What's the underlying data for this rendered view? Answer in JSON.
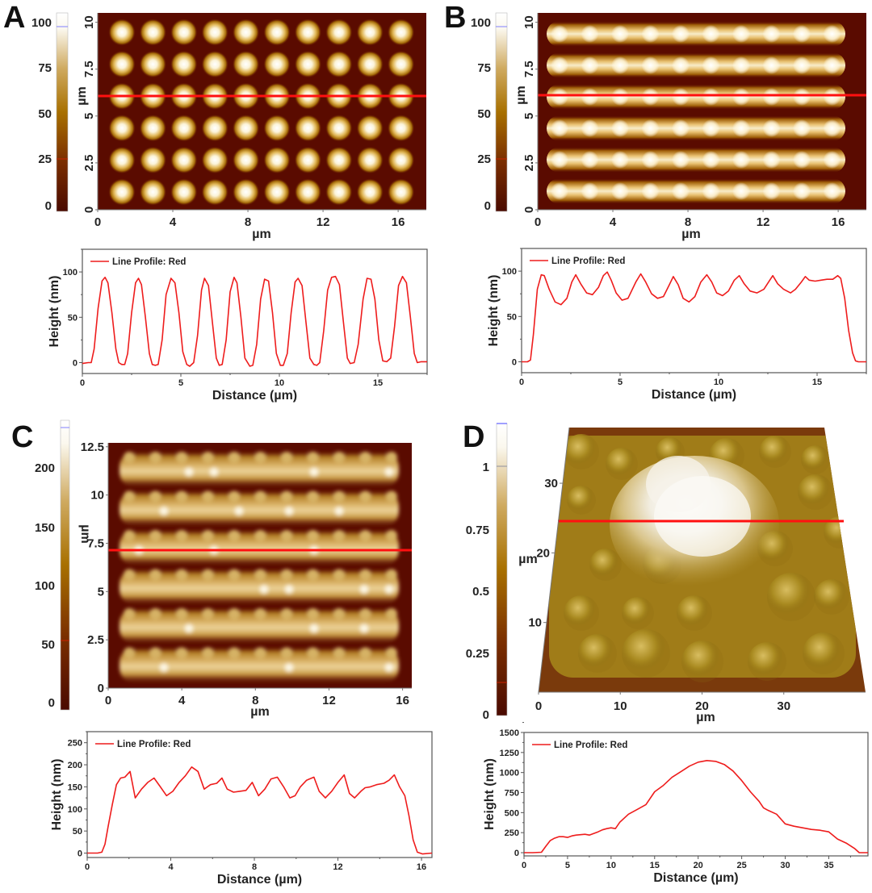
{
  "panels": [
    {
      "label": "A",
      "afm_image": {
        "type": "heatmap",
        "pattern": "isolated dots, 10 columns x 6 rows",
        "x_ticks": [
          "0",
          "4",
          "8",
          "12",
          "16"
        ],
        "y_ticks": [
          "0",
          "2.5",
          "5",
          "7.5",
          "10"
        ],
        "xlabel": "µm",
        "ylabel": "µm",
        "xlim": [
          0,
          17.5
        ],
        "ylim": [
          0,
          10.5
        ],
        "profile_line_y": 6,
        "colorbar": {
          "ticks": [
            "0",
            "25",
            "50",
            "75",
            "100"
          ],
          "range": [
            -2,
            103
          ]
        }
      }
    },
    {
      "label": "B",
      "afm_image": {
        "type": "heatmap",
        "pattern": "connected dot lines, 6 rows",
        "x_ticks": [
          "0",
          "4",
          "8",
          "12",
          "16"
        ],
        "y_ticks": [
          "0",
          "2.5",
          "5",
          "7.5",
          "10"
        ],
        "xlabel": "µm",
        "ylabel": "µm",
        "xlim": [
          0,
          17.5
        ],
        "ylim": [
          0,
          10.5
        ],
        "profile_line_y": 6.1,
        "colorbar": {
          "ticks": [
            "0",
            "25",
            "50",
            "75",
            "100"
          ],
          "range": [
            -2,
            103
          ]
        }
      }
    },
    {
      "label": "C",
      "afm_image": {
        "type": "heatmap",
        "pattern": "multilayer lines, 6 rows",
        "x_ticks": [
          "0",
          "4",
          "8",
          "12",
          "16"
        ],
        "y_ticks": [
          "0",
          "2.5",
          "5",
          "7.5",
          "10",
          "12.5"
        ],
        "xlabel": "µm",
        "ylabel": "µm",
        "xlim": [
          0,
          16.5
        ],
        "ylim": [
          0,
          12.7
        ],
        "profile_line_y": 7.1,
        "colorbar": {
          "ticks": [
            "0",
            "50",
            "100",
            "150",
            "200"
          ],
          "range": [
            -5,
            230
          ]
        }
      }
    },
    {
      "label": "D",
      "afm_image": {
        "type": "heatmap",
        "pattern": "3D surface, central dome",
        "x_ticks": [
          "0",
          "10",
          "20",
          "30"
        ],
        "y_ticks": [
          "10",
          "20",
          "30"
        ],
        "xlabel": "µm",
        "ylabel": "µm",
        "xlim": [
          0,
          40
        ],
        "ylim": [
          0,
          38
        ],
        "profile_line_y": 24,
        "colorbar": {
          "ticks": [
            "0",
            "0.25",
            "0.5",
            "0.75",
            "1"
          ],
          "range": [
            -0.02,
            1.2
          ]
        }
      }
    }
  ],
  "chart_data": [
    {
      "type": "line",
      "panel": "A",
      "legend": "Line Profile: Red",
      "xlabel": "Distance (µm)",
      "ylabel": "Height (nm)",
      "xlim": [
        0,
        17.5
      ],
      "ylim": [
        -12,
        125
      ],
      "x_ticks": [
        0,
        5,
        10,
        15
      ],
      "y_ticks": [
        0,
        50,
        100
      ],
      "color": "#ee1c1c",
      "series": [
        {
          "name": "Line Profile: Red",
          "x": [
            0,
            0.3,
            0.45,
            0.6,
            0.8,
            1.0,
            1.15,
            1.3,
            1.5,
            1.7,
            1.85,
            2.0,
            2.15,
            2.3,
            2.5,
            2.7,
            2.85,
            3.0,
            3.2,
            3.4,
            3.55,
            3.7,
            3.85,
            4.05,
            4.25,
            4.5,
            4.7,
            4.9,
            5.1,
            5.3,
            5.45,
            5.65,
            5.85,
            6.05,
            6.2,
            6.4,
            6.6,
            6.8,
            6.95,
            7.1,
            7.3,
            7.5,
            7.7,
            7.85,
            8.05,
            8.25,
            8.5,
            8.65,
            8.85,
            9.05,
            9.25,
            9.45,
            9.65,
            9.85,
            10.05,
            10.2,
            10.4,
            10.6,
            10.8,
            10.95,
            11.15,
            11.35,
            11.55,
            11.75,
            11.9,
            12.05,
            12.25,
            12.45,
            12.65,
            12.85,
            13.05,
            13.25,
            13.45,
            13.6,
            13.8,
            14.0,
            14.25,
            14.45,
            14.65,
            14.85,
            15.05,
            15.25,
            15.45,
            15.65,
            15.85,
            16.05,
            16.25,
            16.45,
            16.65,
            16.85,
            17.0,
            17.2,
            17.5
          ],
          "y": [
            -1,
            0,
            0,
            15,
            60,
            90,
            94,
            88,
            55,
            15,
            0,
            -2,
            -2,
            10,
            55,
            88,
            93,
            86,
            50,
            10,
            -2,
            -3,
            -2,
            25,
            75,
            93,
            88,
            55,
            12,
            -2,
            -4,
            0,
            30,
            80,
            93,
            85,
            45,
            5,
            -3,
            -2,
            25,
            78,
            94,
            88,
            50,
            5,
            -4,
            -3,
            20,
            70,
            92,
            90,
            55,
            10,
            -3,
            -3,
            10,
            55,
            89,
            93,
            85,
            45,
            5,
            -2,
            -3,
            0,
            35,
            80,
            94,
            95,
            86,
            45,
            5,
            -1,
            0,
            20,
            70,
            93,
            92,
            70,
            25,
            2,
            1,
            5,
            40,
            85,
            95,
            88,
            50,
            10,
            0,
            1,
            1
          ]
        }
      ]
    },
    {
      "type": "line",
      "panel": "B",
      "legend": "Line Profile: Red",
      "xlabel": "Distance (µm)",
      "ylabel": "Height (nm)",
      "xlim": [
        0,
        17.5
      ],
      "ylim": [
        -12,
        125
      ],
      "x_ticks": [
        0,
        5,
        10,
        15
      ],
      "y_ticks": [
        0,
        50,
        100
      ],
      "color": "#ee1c1c",
      "series": [
        {
          "name": "Line Profile: Red",
          "x": [
            0,
            0.3,
            0.45,
            0.6,
            0.8,
            1.0,
            1.15,
            1.4,
            1.7,
            2.0,
            2.3,
            2.55,
            2.75,
            3.0,
            3.3,
            3.6,
            3.9,
            4.15,
            4.35,
            4.55,
            4.8,
            5.1,
            5.4,
            5.8,
            6.05,
            6.3,
            6.6,
            6.9,
            7.2,
            7.5,
            7.7,
            7.95,
            8.2,
            8.5,
            8.8,
            9.1,
            9.4,
            9.65,
            9.9,
            10.2,
            10.5,
            10.8,
            11.05,
            11.3,
            11.6,
            11.95,
            12.3,
            12.6,
            12.75,
            13.0,
            13.3,
            13.65,
            13.9,
            14.2,
            14.4,
            14.6,
            14.9,
            15.2,
            15.5,
            15.8,
            16.05,
            16.2,
            16.4,
            16.6,
            16.8,
            16.95,
            17.1,
            17.5
          ],
          "y": [
            0,
            0,
            2,
            30,
            80,
            96,
            95,
            80,
            66,
            63,
            70,
            88,
            96,
            86,
            76,
            74,
            82,
            95,
            99,
            90,
            76,
            68,
            70,
            88,
            97,
            88,
            75,
            70,
            72,
            85,
            94,
            85,
            70,
            66,
            72,
            88,
            96,
            88,
            76,
            73,
            78,
            90,
            95,
            86,
            78,
            76,
            80,
            90,
            95,
            86,
            80,
            76,
            80,
            88,
            94,
            90,
            89,
            90,
            91,
            91,
            95,
            92,
            70,
            35,
            10,
            1,
            0,
            0
          ]
        }
      ]
    },
    {
      "type": "line",
      "panel": "C",
      "legend": "Line Profile: Red",
      "xlabel": "Distance (µm)",
      "ylabel": "Height (nm)",
      "xlim": [
        0,
        16.5
      ],
      "ylim": [
        -10,
        275
      ],
      "x_ticks": [
        0,
        4,
        8,
        12,
        16
      ],
      "y_ticks": [
        0,
        50,
        100,
        150,
        200,
        250
      ],
      "color": "#ee1c1c",
      "series": [
        {
          "name": "Line Profile: Red",
          "x": [
            0,
            0.5,
            0.7,
            0.85,
            1.0,
            1.2,
            1.4,
            1.6,
            1.8,
            2.05,
            2.3,
            2.6,
            2.9,
            3.2,
            3.5,
            3.8,
            4.1,
            4.4,
            4.7,
            5.0,
            5.3,
            5.6,
            5.9,
            6.2,
            6.45,
            6.7,
            7.0,
            7.3,
            7.6,
            7.9,
            8.2,
            8.5,
            8.8,
            9.1,
            9.4,
            9.7,
            9.95,
            10.2,
            10.5,
            10.85,
            11.1,
            11.4,
            11.7,
            12.0,
            12.3,
            12.55,
            12.8,
            13.1,
            13.3,
            13.55,
            13.85,
            14.2,
            14.45,
            14.7,
            14.95,
            15.2,
            15.4,
            15.6,
            15.8,
            16.05,
            16.5
          ],
          "y": [
            0,
            0,
            2,
            20,
            60,
            110,
            155,
            170,
            172,
            185,
            125,
            145,
            160,
            170,
            150,
            130,
            140,
            160,
            175,
            195,
            185,
            145,
            155,
            158,
            170,
            145,
            138,
            140,
            142,
            160,
            130,
            145,
            168,
            172,
            150,
            125,
            130,
            150,
            165,
            172,
            140,
            125,
            140,
            160,
            177,
            135,
            125,
            140,
            148,
            150,
            155,
            158,
            165,
            177,
            150,
            130,
            85,
            30,
            2,
            -2,
            0
          ]
        }
      ]
    },
    {
      "type": "line",
      "panel": "D",
      "legend": "Line Profile: Red",
      "xlabel": "Distance (µm)",
      "ylabel": "Height (nm)",
      "xlim": [
        0,
        39.5
      ],
      "ylim": [
        -40,
        1500
      ],
      "x_ticks": [
        0,
        5,
        10,
        15,
        20,
        25,
        30,
        35
      ],
      "y_ticks": [
        0,
        250,
        500,
        750,
        1000,
        1250,
        1500
      ],
      "color": "#ee1c1c",
      "series": [
        {
          "name": "Line Profile: Red",
          "x": [
            0,
            1,
            2,
            2.5,
            3,
            3.5,
            4,
            4.5,
            5,
            5.5,
            6,
            6.5,
            7,
            7.5,
            8,
            8.5,
            9,
            9.5,
            10,
            10.5,
            11,
            12,
            13,
            14,
            15,
            16,
            17,
            18,
            19,
            20,
            21,
            22,
            23,
            24,
            25,
            26,
            27,
            27.5,
            28,
            29,
            30,
            31,
            32,
            33,
            34,
            35,
            36,
            37,
            38,
            38.5,
            39.5
          ],
          "y": [
            0,
            0,
            5,
            80,
            150,
            180,
            200,
            200,
            190,
            210,
            220,
            225,
            230,
            220,
            240,
            260,
            285,
            300,
            310,
            300,
            380,
            480,
            540,
            600,
            760,
            840,
            940,
            1010,
            1080,
            1130,
            1150,
            1140,
            1100,
            1020,
            900,
            760,
            640,
            560,
            530,
            480,
            360,
            330,
            310,
            290,
            280,
            260,
            170,
            120,
            50,
            0,
            0
          ]
        }
      ]
    }
  ]
}
